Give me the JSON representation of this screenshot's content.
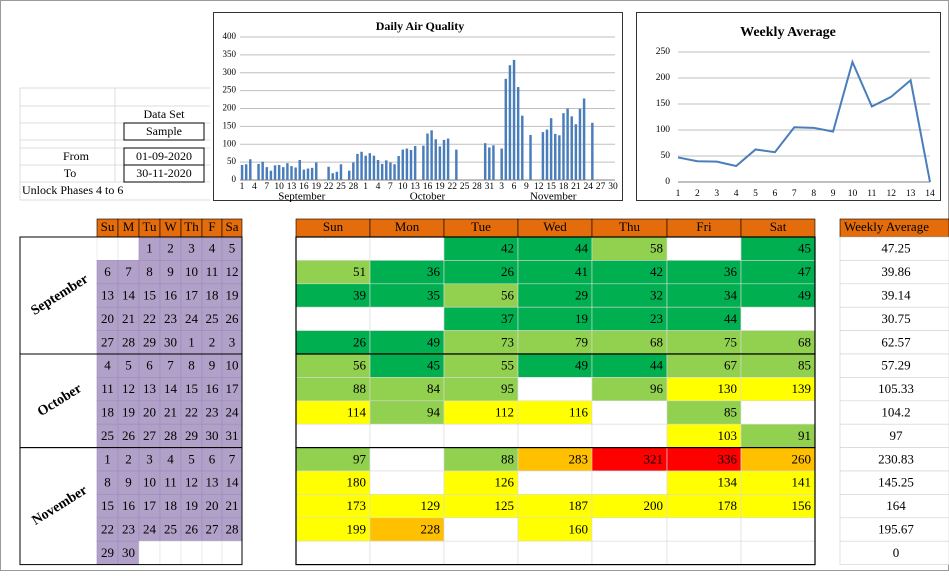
{
  "info": {
    "data_set_label": "Data Set",
    "data_set": "Sample",
    "from_label": "From",
    "from": "01-09-2020",
    "to_label": "To",
    "to": "30-11-2020",
    "note": "Unlock Phases 4 to 6"
  },
  "chart_data": [
    {
      "type": "bar",
      "title": "Daily Air Quality",
      "color": "#4a7ebb",
      "grid": true,
      "ylim": [
        0,
        400
      ],
      "yticks": [
        0,
        50,
        100,
        150,
        200,
        250,
        300,
        350,
        400
      ],
      "groups": [
        {
          "name": "September",
          "categories": [
            "1",
            null,
            null,
            "4",
            null,
            null,
            "7",
            null,
            null,
            "10",
            null,
            null,
            "13",
            null,
            null,
            "16",
            null,
            null,
            "19",
            null,
            null,
            "22",
            null,
            null,
            "25",
            null,
            null,
            "28",
            null,
            null
          ],
          "values": [
            42,
            44,
            58,
            null,
            45,
            51,
            36,
            26,
            41,
            42,
            36,
            47,
            39,
            35,
            56,
            29,
            32,
            34,
            49,
            null,
            null,
            37,
            19,
            23,
            44,
            null,
            26,
            49,
            73,
            79
          ]
        },
        {
          "name": "October",
          "categories": [
            "1",
            null,
            null,
            "4",
            null,
            null,
            "7",
            null,
            null,
            "10",
            null,
            null,
            "13",
            null,
            null,
            "16",
            null,
            null,
            "19",
            null,
            null,
            "22",
            null,
            null,
            "25",
            null,
            null,
            "28",
            null,
            null,
            "31"
          ],
          "values": [
            68,
            75,
            68,
            56,
            45,
            55,
            49,
            44,
            67,
            85,
            88,
            84,
            95,
            null,
            96,
            130,
            139,
            114,
            94,
            112,
            116,
            null,
            85,
            null,
            null,
            null,
            null,
            null,
            null,
            103,
            91
          ]
        },
        {
          "name": "November",
          "categories": [
            null,
            null,
            "3",
            null,
            null,
            "6",
            null,
            null,
            "9",
            null,
            null,
            "12",
            null,
            null,
            "15",
            null,
            null,
            "18",
            null,
            null,
            "21",
            null,
            null,
            "24",
            null,
            null,
            "27",
            null,
            null,
            "30"
          ],
          "values": [
            97,
            null,
            88,
            283,
            321,
            336,
            260,
            180,
            null,
            126,
            null,
            null,
            134,
            141,
            173,
            129,
            125,
            187,
            200,
            178,
            156,
            199,
            228,
            null,
            160,
            null,
            null,
            null,
            null,
            null
          ]
        }
      ]
    },
    {
      "type": "line",
      "title": "Weekly Average",
      "color": "#4a7ebb",
      "grid": true,
      "ylim": [
        0,
        250
      ],
      "yticks": [
        0,
        50,
        100,
        150,
        200,
        250
      ],
      "categories": [
        "1",
        "2",
        "3",
        "4",
        "5",
        "6",
        "7",
        "8",
        "9",
        "10",
        "11",
        "12",
        "13",
        "14"
      ],
      "values": [
        47.25,
        39.86,
        39.14,
        30.75,
        62.57,
        57.29,
        105.33,
        104.2,
        97,
        230.83,
        145.25,
        164,
        195.67,
        0
      ]
    }
  ],
  "calendar": {
    "day_headers": [
      "Su",
      "M",
      "Tu",
      "W",
      "Th",
      "F",
      "Sa"
    ],
    "value_headers": [
      "Sun",
      "Mon",
      "Tue",
      "Wed",
      "Thu",
      "Fri",
      "Sat"
    ],
    "average_header": "Weekly Average",
    "header_color": "#e46c0a",
    "day_color": "#b1a0c7",
    "color_scale": [
      {
        "max": 50,
        "color": "#00b050"
      },
      {
        "max": 100,
        "color": "#92d050"
      },
      {
        "max": 200,
        "color": "#ffff00"
      },
      {
        "max": 300,
        "color": "#ffc000"
      },
      {
        "max": 500,
        "color": "#ff0000"
      }
    ],
    "months": [
      {
        "name": "September",
        "weeks": [
          {
            "days": [
              null,
              null,
              1,
              2,
              3,
              4,
              5
            ],
            "values": [
              null,
              null,
              42,
              44,
              58,
              null,
              45
            ],
            "average": 47.25
          },
          {
            "days": [
              6,
              7,
              8,
              9,
              10,
              11,
              12
            ],
            "values": [
              51,
              36,
              26,
              41,
              42,
              36,
              47
            ],
            "average": 39.86
          },
          {
            "days": [
              13,
              14,
              15,
              16,
              17,
              18,
              19
            ],
            "values": [
              39,
              35,
              56,
              29,
              32,
              34,
              49
            ],
            "average": 39.14
          },
          {
            "days": [
              20,
              21,
              22,
              23,
              24,
              25,
              26
            ],
            "values": [
              null,
              null,
              37,
              19,
              23,
              44,
              null
            ],
            "average": 30.75
          },
          {
            "days": [
              27,
              28,
              29,
              30,
              1,
              2,
              3
            ],
            "values": [
              26,
              49,
              73,
              79,
              68,
              75,
              68
            ],
            "average": 62.57
          }
        ]
      },
      {
        "name": "October",
        "weeks": [
          {
            "days": [
              4,
              5,
              6,
              7,
              8,
              9,
              10
            ],
            "values": [
              56,
              45,
              55,
              49,
              44,
              67,
              85
            ],
            "average": 57.29
          },
          {
            "days": [
              11,
              12,
              13,
              14,
              15,
              16,
              17
            ],
            "values": [
              88,
              84,
              95,
              null,
              96,
              130,
              139
            ],
            "average": 105.33
          },
          {
            "days": [
              18,
              19,
              20,
              21,
              22,
              23,
              24
            ],
            "values": [
              114,
              94,
              112,
              116,
              null,
              85,
              null
            ],
            "average": 104.2
          },
          {
            "days": [
              25,
              26,
              27,
              28,
              29,
              30,
              31
            ],
            "values": [
              null,
              null,
              null,
              null,
              null,
              103,
              91
            ],
            "average": 97
          }
        ]
      },
      {
        "name": "November",
        "weeks": [
          {
            "days": [
              1,
              2,
              3,
              4,
              5,
              6,
              7
            ],
            "values": [
              97,
              null,
              88,
              283,
              321,
              336,
              260
            ],
            "average": 230.83
          },
          {
            "days": [
              8,
              9,
              10,
              11,
              12,
              13,
              14
            ],
            "values": [
              180,
              null,
              126,
              null,
              null,
              134,
              141
            ],
            "average": 145.25
          },
          {
            "days": [
              15,
              16,
              17,
              18,
              19,
              20,
              21
            ],
            "values": [
              173,
              129,
              125,
              187,
              200,
              178,
              156
            ],
            "average": 164
          },
          {
            "days": [
              22,
              23,
              24,
              25,
              26,
              27,
              28
            ],
            "values": [
              199,
              228,
              null,
              160,
              null,
              null,
              null
            ],
            "average": 195.67
          },
          {
            "days": [
              29,
              30,
              null,
              null,
              null,
              null,
              null
            ],
            "values": [
              null,
              null,
              null,
              null,
              null,
              null,
              null
            ],
            "average": 0
          }
        ]
      }
    ]
  }
}
